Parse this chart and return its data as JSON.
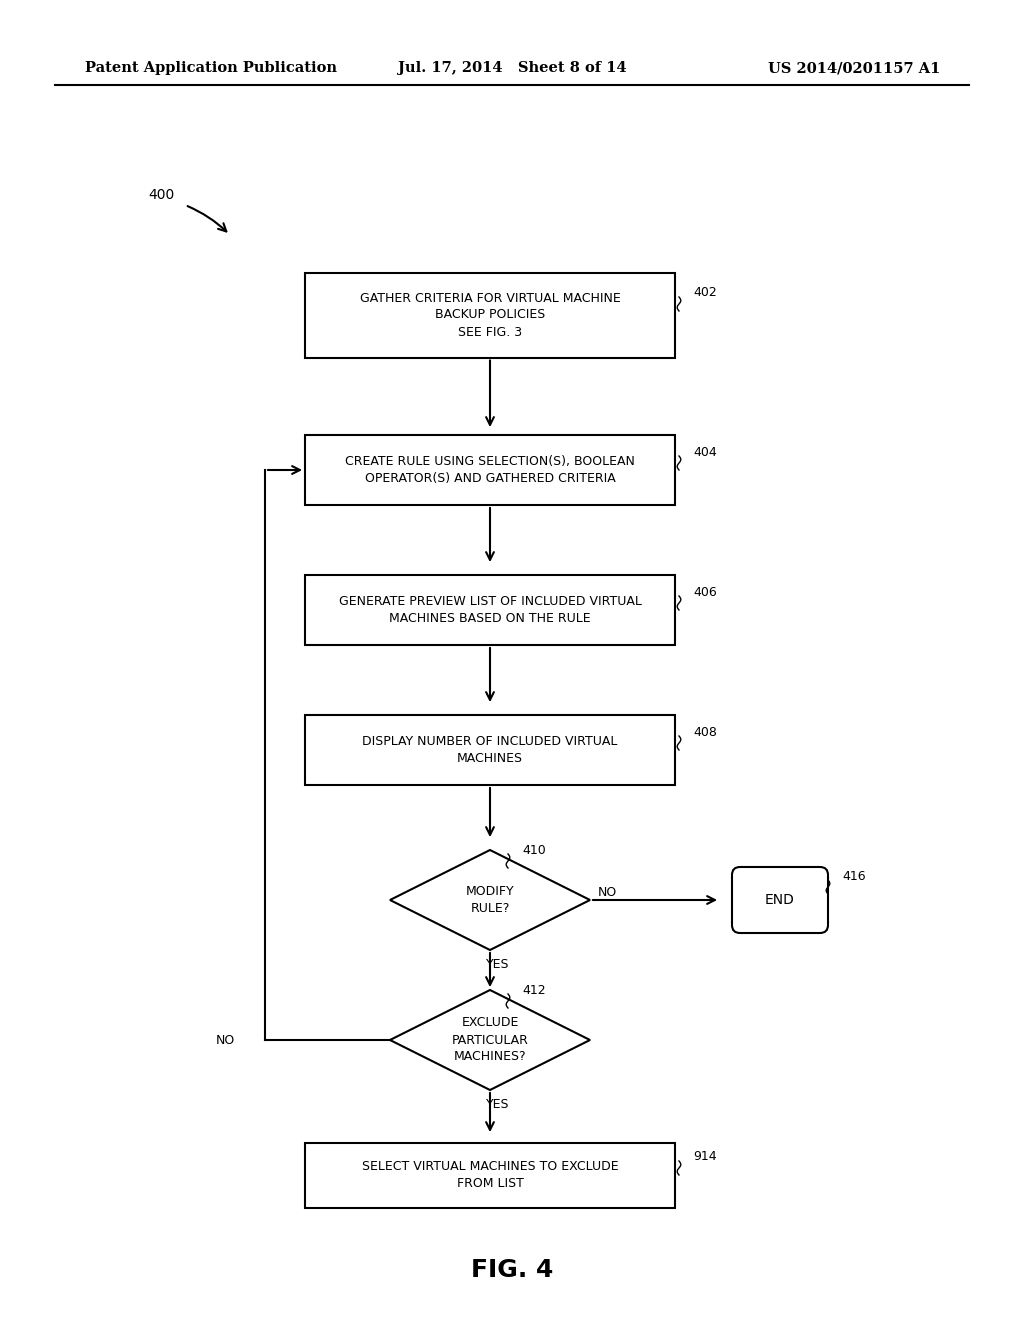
{
  "bg_color": "#ffffff",
  "header_left": "Patent Application Publication",
  "header_mid": "Jul. 17, 2014   Sheet 8 of 14",
  "header_right": "US 2014/0201157 A1",
  "fig_label": "FIG. 4",
  "diagram_label": "400",
  "box402_text": "GATHER CRITERIA FOR VIRTUAL MACHINE\nBACKUP POLICIES\nSEE FIG. 3",
  "box404_text": "CREATE RULE USING SELECTION(S), BOOLEAN\nOPERATOR(S) AND GATHERED CRITERIA",
  "box406_text": "GENERATE PREVIEW LIST OF INCLUDED VIRTUAL\nMACHINES BASED ON THE RULE",
  "box408_text": "DISPLAY NUMBER OF INCLUDED VIRTUAL\nMACHINES",
  "d410_text": "MODIFY\nRULE?",
  "d412_text": "EXCLUDE\nPARTICULAR\nMACHINES?",
  "box914_text": "SELECT VIRTUAL MACHINES TO EXCLUDE\nFROM LIST",
  "end_text": "END"
}
